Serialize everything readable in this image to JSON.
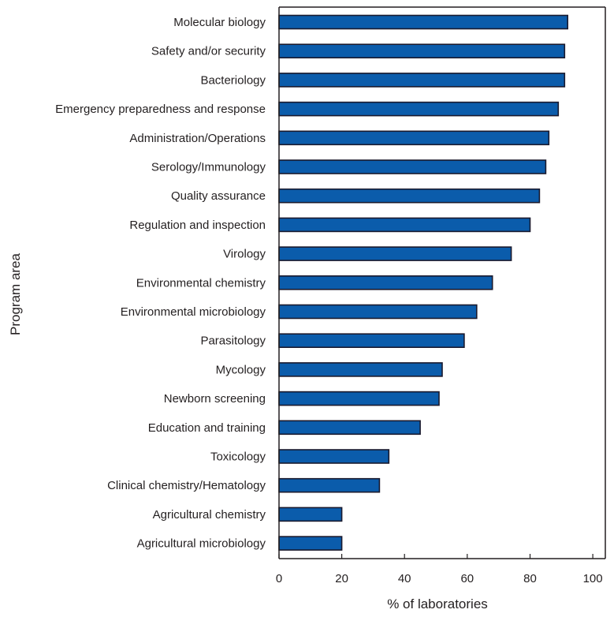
{
  "chart_data": {
    "type": "bar",
    "orientation": "horizontal",
    "title": "",
    "xlabel": "% of laboratories",
    "ylabel": "Program area",
    "xlim": [
      0,
      104
    ],
    "xticks": [
      "0",
      "20",
      "40",
      "60",
      "80",
      "100"
    ],
    "grid": false,
    "legend": "none",
    "bar_color": "#0b5cab",
    "bar_edge_color": "#1a1a2e",
    "categories": [
      "Molecular biology",
      "Safety and/or security",
      "Bacteriology",
      "Emergency preparedness and response",
      "Administration/Operations",
      "Serology/Immunology",
      "Quality assurance",
      "Regulation and inspection",
      "Virology",
      "Environmental chemistry",
      "Environmental microbiology",
      "Parasitology",
      "Mycology",
      "Newborn screening",
      "Education and training",
      "Toxicology",
      "Clinical chemistry/Hematology",
      "Agricultural chemistry",
      "Agricultural microbiology"
    ],
    "values": [
      92,
      91,
      91,
      89,
      86,
      85,
      83,
      80,
      74,
      68,
      63,
      59,
      52,
      51,
      45,
      35,
      32,
      20,
      20
    ]
  }
}
